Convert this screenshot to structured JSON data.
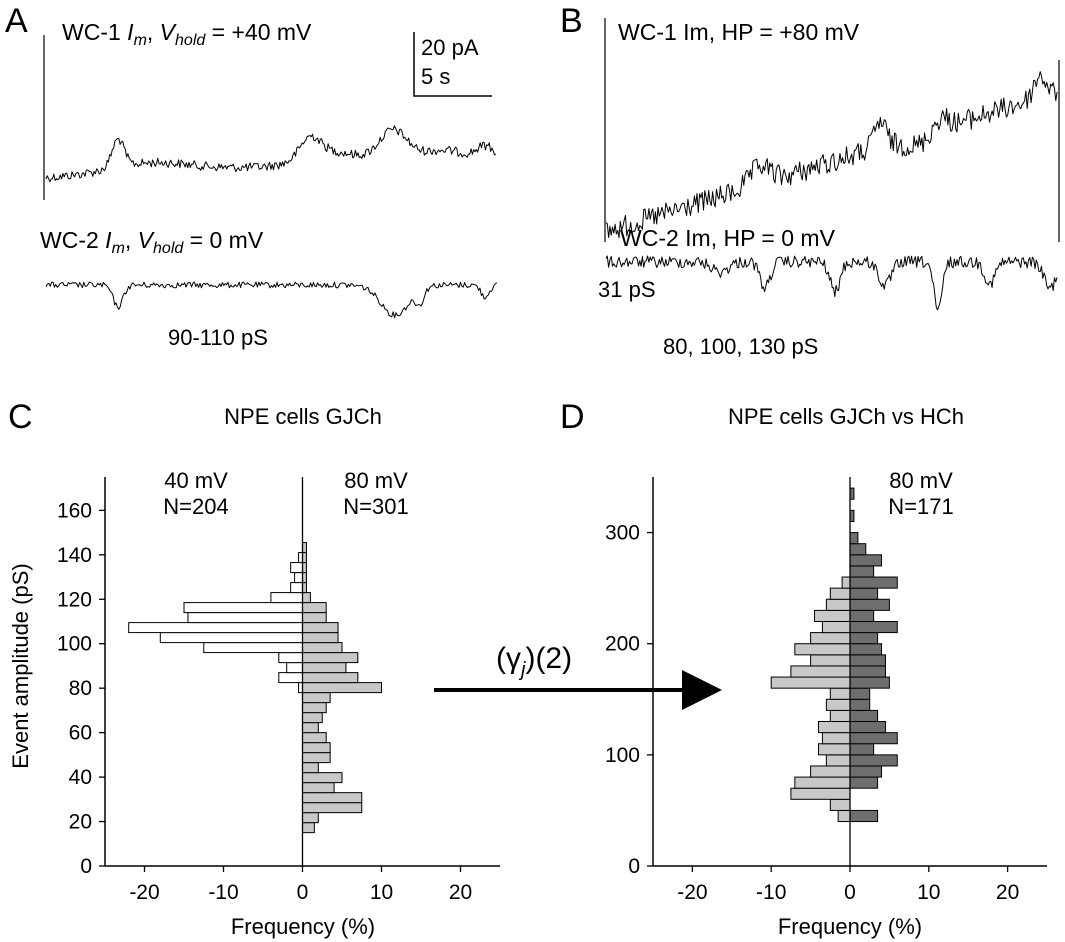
{
  "figure": {
    "panels": {
      "A": {
        "letter": "A",
        "top_label": {
          "pre": "WC-1 ",
          "I": "I",
          "m": "m",
          "mid": ", ",
          "V": "V",
          "hold": "hold",
          "post": " = +40 mV"
        },
        "bottom_label": {
          "pre": "WC-2 ",
          "I": "I",
          "m": "m",
          "mid": ", ",
          "V": "V",
          "hold": "hold",
          "post": " = 0 mV"
        },
        "scale_current": "20 pA",
        "scale_time": "5 s",
        "conductance_label": "90-110 pS"
      },
      "B": {
        "letter": "B",
        "top_label": "WC-1 Im, HP = +80 mV",
        "bottom_label": "WC-2 Im, HP = 0 mV",
        "small_label": "31 pS",
        "conductance_label": "80, 100, 130 pS"
      },
      "C": {
        "letter": "C"
      },
      "D": {
        "letter": "D"
      }
    },
    "arrow_label": {
      "pre": "(γ",
      "sub": "j",
      "post": ")(2)"
    }
  },
  "chart_data": [
    {
      "type": "bar",
      "orientation": "horizontal-mirrored",
      "panel": "C",
      "title": "NPE cells GJCh",
      "xlabel": "Frequency (%)",
      "ylabel": "Event amplitude (pS)",
      "xlim": [
        -25,
        25
      ],
      "ylim": [
        0,
        175
      ],
      "xticks": [
        -20,
        -10,
        0,
        10,
        20
      ],
      "yticks": [
        0,
        20,
        40,
        60,
        80,
        100,
        120,
        140,
        160
      ],
      "bin_width": 4.5,
      "series": [
        {
          "name": "40 mV",
          "n_label": "N=204",
          "fill": "#ffffff",
          "side": "left",
          "bin_bottoms": [
            78,
            82.5,
            87,
            91.5,
            96,
            100.5,
            105,
            109.5,
            114,
            118.5,
            123,
            127.5,
            132,
            136.5,
            141
          ],
          "values": [
            0.5,
            3,
            2,
            3,
            12.5,
            18,
            22,
            14.5,
            15,
            4,
            1.5,
            1,
            1.5,
            0.5,
            0
          ]
        },
        {
          "name": "80 mV",
          "n_label": "N=301",
          "fill": "#c8c8c8",
          "side": "right",
          "bin_bottoms": [
            15,
            19.5,
            24,
            28.5,
            33,
            37.5,
            42,
            46.5,
            51,
            55.5,
            60,
            64.5,
            69,
            73.5,
            78,
            82.5,
            87,
            91.5,
            96,
            100.5,
            105,
            109.5,
            114,
            118.5,
            123,
            127.5,
            132,
            136.5,
            141
          ],
          "values": [
            1.5,
            2,
            7.5,
            7.5,
            4,
            5,
            2,
            3.5,
            3.5,
            3,
            2,
            2.5,
            3,
            3.5,
            10,
            7,
            5.5,
            7,
            5,
            4.5,
            4.5,
            3,
            3,
            1,
            0.5,
            0.5,
            0.5,
            0.5,
            0.5
          ]
        }
      ]
    },
    {
      "type": "bar",
      "orientation": "horizontal-mirrored",
      "panel": "D",
      "title": "NPE cells GJCh vs HCh",
      "xlabel": "Frequency (%)",
      "ylabel": "",
      "xlim": [
        -25,
        25
      ],
      "ylim": [
        0,
        350
      ],
      "xticks": [
        -20,
        -10,
        0,
        10,
        20
      ],
      "yticks": [
        0,
        100,
        200,
        300
      ],
      "bin_width": 10,
      "series": [
        {
          "name": "GJCh",
          "fill": "#c8c8c8",
          "side": "left",
          "bin_bottoms": [
            40,
            50,
            60,
            70,
            80,
            90,
            100,
            110,
            120,
            130,
            140,
            150,
            160,
            170,
            180,
            190,
            200,
            210,
            220,
            230,
            240,
            250,
            260
          ],
          "values": [
            1.5,
            2.5,
            7.5,
            7,
            5,
            3,
            4,
            3.5,
            4,
            2.5,
            3,
            2.5,
            10,
            7.5,
            5,
            7,
            5,
            3.5,
            4.5,
            3,
            2.5,
            1,
            0
          ]
        },
        {
          "name": "80 mV",
          "n_label": "N=171",
          "fill": "#6e6e6e",
          "side": "right",
          "bin_bottoms": [
            40,
            50,
            60,
            70,
            80,
            90,
            100,
            110,
            120,
            130,
            140,
            150,
            160,
            170,
            180,
            190,
            200,
            210,
            220,
            230,
            240,
            250,
            260,
            270,
            280,
            290,
            300,
            310,
            320,
            330
          ],
          "values": [
            3.5,
            0,
            0,
            3.5,
            4,
            6,
            3,
            6,
            4.5,
            3.5,
            2.5,
            2.5,
            5,
            4.5,
            4.5,
            4,
            3.5,
            6,
            3,
            5,
            3.5,
            6,
            3,
            4,
            2,
            1,
            0,
            0.5,
            0,
            0.5
          ]
        }
      ]
    }
  ]
}
